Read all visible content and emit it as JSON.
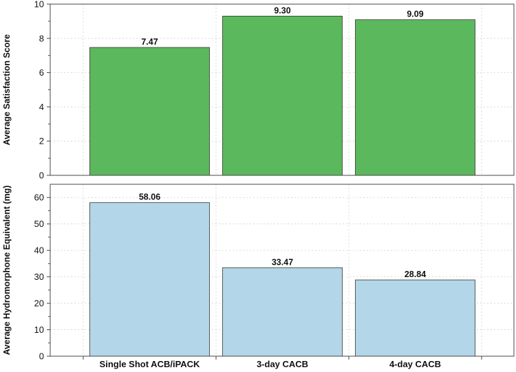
{
  "chart_data": [
    {
      "type": "bar",
      "categories": [
        "Single Shot ACB/iPACK",
        "3-day CACB",
        "4-day CACB"
      ],
      "values": [
        7.47,
        9.3,
        9.09
      ],
      "value_labels": [
        "7.47",
        "9.30",
        "9.09"
      ],
      "ylabel": "Average Satisfaction Score",
      "ylim": [
        0,
        10
      ],
      "yticks": [
        0,
        2,
        4,
        6,
        8,
        10
      ],
      "color": "#5cb85c",
      "grid": true
    },
    {
      "type": "bar",
      "categories": [
        "Single Shot ACB/iPACK",
        "3-day CACB",
        "4-day CACB"
      ],
      "values": [
        58.06,
        33.47,
        28.84
      ],
      "value_labels": [
        "58.06",
        "33.47",
        "28.84"
      ],
      "ylabel": "Average Hydromorphone Equivalent (mg)",
      "ylim": [
        0,
        65
      ],
      "yticks": [
        0,
        10,
        20,
        30,
        40,
        50,
        60
      ],
      "color": "#b3d6e8",
      "grid": true
    }
  ]
}
